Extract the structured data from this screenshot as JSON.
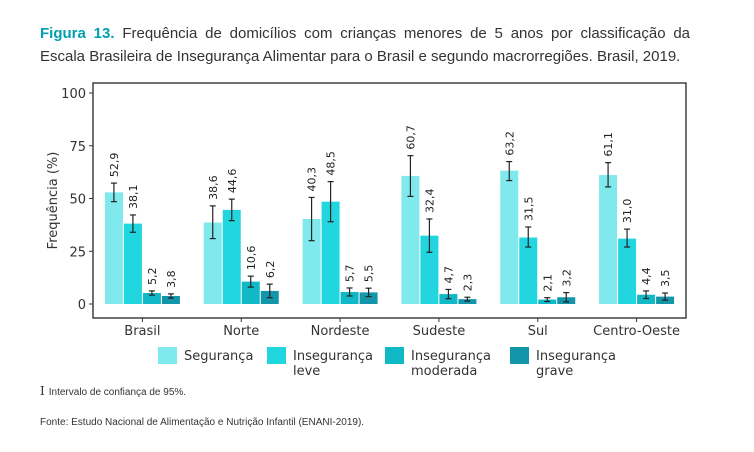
{
  "caption": {
    "label": "Figura 13.",
    "text": "Frequência de domicílios com crianças menores de 5 anos por classificação da Escala Brasileira de Insegurança Alimentar para o Brasil e segundo macrorregiões. Brasil, 2019."
  },
  "chart_data": {
    "type": "bar",
    "title": "",
    "xlabel": "",
    "ylabel": "Frequência (%)",
    "ylim": [
      0,
      100
    ],
    "yticks": [
      0,
      25,
      50,
      75,
      100
    ],
    "categories": [
      "Brasil",
      "Norte",
      "Nordeste",
      "Sudeste",
      "Sul",
      "Centro-Oeste"
    ],
    "series": [
      {
        "name": "Segurança",
        "lines": [
          "Segurança"
        ],
        "color": "#7fe9ee",
        "values": [
          52.9,
          38.6,
          40.3,
          60.7,
          63.2,
          61.1
        ],
        "labels": [
          "52,9",
          "38,6",
          "40,3",
          "60,7",
          "63,2",
          "61,1"
        ],
        "ci": [
          [
            48.5,
            57.3
          ],
          [
            31.0,
            46.5
          ],
          [
            30.0,
            50.5
          ],
          [
            51.0,
            70.3
          ],
          [
            58.5,
            67.5
          ],
          [
            55.5,
            67.0
          ]
        ]
      },
      {
        "name": "Insegurança leve",
        "lines": [
          "Insegurança",
          "leve"
        ],
        "color": "#21d6de",
        "values": [
          38.1,
          44.6,
          48.5,
          32.4,
          31.5,
          31.0
        ],
        "labels": [
          "38,1",
          "44,6",
          "48,5",
          "32,4",
          "31,5",
          "31,0"
        ],
        "ci": [
          [
            34.0,
            42.2
          ],
          [
            39.5,
            49.7
          ],
          [
            39.0,
            58.0
          ],
          [
            24.5,
            40.3
          ],
          [
            27.0,
            36.5
          ],
          [
            27.0,
            35.5
          ]
        ]
      },
      {
        "name": "Insegurança moderada",
        "lines": [
          "Insegurança",
          "moderada"
        ],
        "color": "#10b9c5",
        "values": [
          5.2,
          10.6,
          5.7,
          4.7,
          2.1,
          4.4
        ],
        "labels": [
          "5,2",
          "10,6",
          "5,7",
          "4,7",
          "2,1",
          "4,4"
        ],
        "ci": [
          [
            4.2,
            6.2
          ],
          [
            8.0,
            13.2
          ],
          [
            3.8,
            7.6
          ],
          [
            2.5,
            6.9
          ],
          [
            1.2,
            3.0
          ],
          [
            2.6,
            6.2
          ]
        ]
      },
      {
        "name": "Insegurança grave",
        "lines": [
          "Insegurança",
          "grave"
        ],
        "color": "#1496aa",
        "values": [
          3.8,
          6.2,
          5.5,
          2.3,
          3.2,
          3.5
        ],
        "labels": [
          "3,8",
          "6,2",
          "5,5",
          "2,3",
          "3,2",
          "3,5"
        ],
        "ci": [
          [
            2.8,
            4.8
          ],
          [
            3.0,
            9.4
          ],
          [
            3.5,
            7.5
          ],
          [
            1.4,
            3.2
          ],
          [
            1.0,
            5.4
          ],
          [
            1.8,
            5.2
          ]
        ]
      }
    ]
  },
  "note": {
    "symbol": "I",
    "text": "Intervalo de confiança de 95%."
  },
  "source": "Fonte: Estudo Nacional de Alimentação e Nutrição Infantil (ENANI-2019)."
}
